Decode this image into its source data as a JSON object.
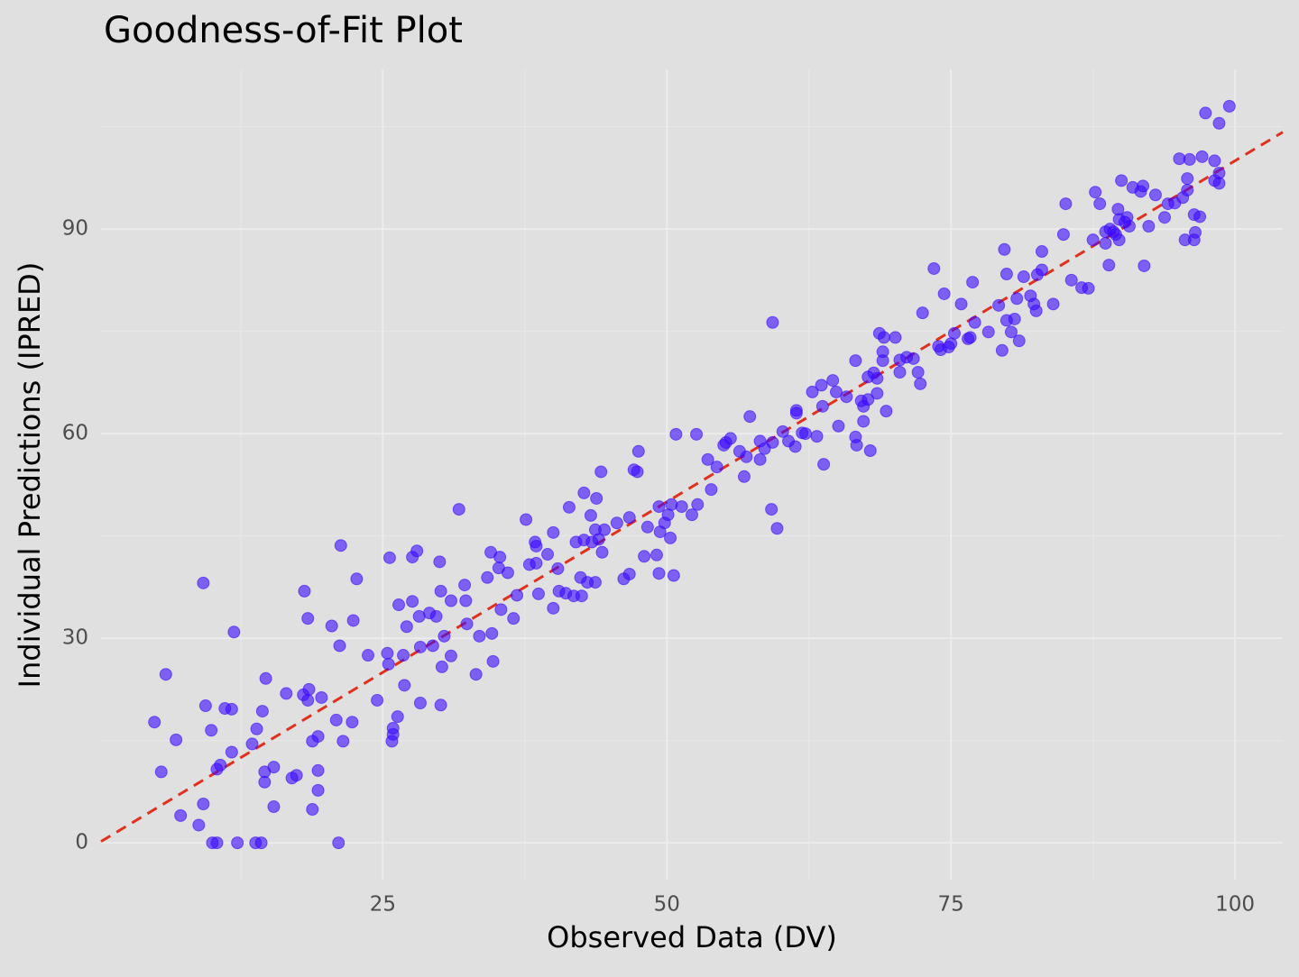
{
  "chart_data": {
    "type": "scatter",
    "title": "Goodness-of-Fit Plot",
    "x_label": "Observed Data (DV)",
    "y_label": "Individual Predictions (IPRED)",
    "xlim": [
      0.2,
      104.2
    ],
    "ylim": [
      -5.4,
      113.4
    ],
    "xticks": [
      25,
      50,
      75,
      100
    ],
    "yticks": [
      0,
      30,
      60,
      90
    ],
    "x_minor_ticks": [
      12.5,
      37.5,
      62.5,
      87.5
    ],
    "y_minor_ticks": [
      15,
      45,
      75,
      105
    ],
    "grid": true,
    "color": "#3a0aff",
    "identity_line": true,
    "identity_color": "#e0301e",
    "x": [
      4.9,
      5.5,
      5.9,
      6.8,
      7.2,
      8.8,
      9.2,
      9.2,
      9.4,
      9.9,
      10.0,
      10.4,
      10.4,
      10.7,
      11.1,
      11.7,
      11.7,
      11.9,
      12.2,
      13.5,
      13.9,
      13.8,
      14.3,
      14.4,
      14.6,
      14.7,
      14.6,
      15.4,
      15.4,
      16.5,
      17.0,
      17.4,
      18.0,
      18.1,
      18.4,
      18.5,
      18.4,
      18.8,
      18.8,
      19.3,
      19.3,
      19.3,
      19.6,
      20.5,
      20.9,
      21.1,
      21.2,
      21.3,
      21.5,
      22.3,
      22.4,
      22.7,
      23.7,
      24.5,
      25.6,
      25.4,
      25.5,
      25.9,
      25.8,
      25.9,
      26.3,
      26.4,
      26.8,
      26.9,
      27.1,
      27.6,
      27.6,
      28.0,
      28.2,
      28.3,
      28.3,
      29.1,
      29.4,
      29.7,
      30.0,
      30.1,
      30.2,
      30.1,
      30.4,
      31.0,
      31.0,
      31.7,
      32.2,
      32.3,
      32.4,
      33.2,
      33.5,
      34.2,
      34.5,
      34.6,
      34.7,
      35.2,
      35.3,
      35.4,
      36.0,
      36.5,
      36.8,
      37.6,
      37.9,
      38.4,
      38.5,
      38.5,
      38.7,
      39.5,
      40.0,
      40.0,
      40.4,
      40.5,
      41.1,
      41.4,
      41.8,
      42.0,
      42.4,
      42.5,
      42.7,
      42.7,
      43.0,
      43.3,
      43.4,
      43.7,
      43.8,
      43.7,
      44.0,
      44.2,
      44.3,
      44.5,
      45.6,
      46.2,
      46.7,
      46.7,
      47.1,
      47.4,
      47.5,
      48.0,
      48.3,
      49.1,
      49.3,
      49.3,
      49.4,
      49.8,
      50.1,
      50.3,
      50.4,
      50.6,
      50.8,
      51.3,
      52.2,
      52.6,
      52.7,
      53.6,
      53.9,
      54.4,
      55.0,
      55.2,
      55.6,
      56.4,
      56.8,
      57.0,
      57.3,
      58.2,
      58.2,
      58.6,
      59.2,
      59.3,
      59.3,
      59.7,
      60.2,
      60.7,
      61.3,
      61.4,
      61.4,
      61.9,
      62.2,
      62.8,
      63.2,
      63.6,
      63.8,
      63.7,
      64.6,
      64.9,
      65.1,
      65.8,
      66.6,
      66.6,
      66.7,
      67.1,
      67.3,
      67.3,
      67.7,
      67.7,
      67.9,
      68.2,
      68.5,
      68.5,
      68.7,
      69.0,
      69.0,
      69.1,
      69.3,
      70.1,
      70.5,
      70.5,
      71.1,
      71.7,
      72.1,
      72.3,
      72.5,
      73.5,
      73.9,
      74.1,
      74.4,
      74.8,
      75.0,
      75.3,
      75.9,
      76.5,
      76.7,
      76.9,
      77.1,
      78.3,
      79.2,
      79.5,
      79.7,
      79.9,
      79.9,
      80.3,
      80.6,
      80.8,
      81.0,
      81.4,
      82.0,
      82.3,
      82.5,
      82.6,
      83.0,
      83.0,
      84.0,
      84.9,
      85.1,
      85.6,
      86.5,
      87.1,
      87.5,
      87.7,
      88.1,
      88.6,
      88.6,
      88.9,
      89.0,
      89.3,
      89.5,
      89.7,
      89.8,
      89.8,
      90.0,
      90.3,
      90.5,
      90.7,
      91.0,
      91.7,
      91.9,
      92.0,
      92.4,
      93.0,
      93.8,
      94.1,
      94.7,
      95.1,
      95.4,
      95.6,
      95.8,
      95.8,
      96.0,
      96.4,
      96.4,
      96.5,
      96.9,
      97.1,
      97.4,
      98.2,
      98.2,
      98.6,
      98.6,
      98.6,
      99.5
    ],
    "values": [
      17.7,
      10.4,
      24.7,
      15.1,
      4.0,
      2.6,
      5.7,
      38.1,
      20.1,
      16.5,
      0,
      0,
      10.8,
      11.4,
      19.7,
      13.3,
      19.6,
      30.9,
      0,
      14.5,
      16.7,
      0,
      0,
      19.3,
      10.4,
      24.1,
      8.9,
      11.1,
      5.3,
      21.9,
      9.5,
      9.9,
      21.7,
      36.9,
      32.9,
      22.5,
      20.9,
      4.9,
      14.9,
      15.6,
      10.6,
      7.7,
      21.3,
      31.8,
      18.0,
      0,
      28.9,
      43.6,
      14.9,
      17.7,
      32.6,
      38.7,
      27.5,
      20.9,
      41.8,
      27.8,
      26.2,
      16.8,
      14.9,
      15.9,
      18.5,
      34.9,
      27.5,
      23.1,
      31.7,
      35.4,
      41.9,
      42.8,
      33.2,
      20.5,
      28.7,
      33.7,
      28.9,
      33.2,
      41.2,
      36.9,
      25.8,
      20.2,
      30.3,
      35.5,
      27.4,
      48.9,
      37.8,
      35.5,
      32.1,
      24.7,
      30.3,
      38.9,
      42.6,
      30.7,
      26.6,
      40.3,
      41.9,
      34.2,
      39.6,
      32.9,
      36.3,
      47.4,
      40.8,
      44.1,
      43.5,
      41.0,
      36.5,
      42.3,
      34.4,
      45.5,
      40.2,
      36.9,
      36.6,
      49.2,
      36.2,
      44.1,
      38.9,
      36.2,
      51.3,
      44.4,
      38.2,
      48.0,
      44.1,
      38.2,
      50.5,
      45.9,
      44.5,
      54.4,
      42.6,
      45.9,
      46.9,
      38.7,
      47.7,
      39.4,
      54.7,
      54.4,
      57.4,
      42.0,
      46.3,
      42.2,
      39.5,
      49.3,
      45.6,
      46.9,
      48.1,
      44.7,
      49.6,
      39.2,
      59.9,
      49.3,
      48.1,
      59.9,
      49.6,
      56.2,
      51.8,
      55.1,
      58.3,
      58.7,
      59.3,
      57.4,
      53.7,
      56.6,
      62.5,
      56.2,
      58.9,
      57.8,
      48.9,
      76.3,
      58.7,
      46.1,
      60.3,
      58.9,
      58.1,
      63.0,
      63.4,
      60.1,
      60.0,
      66.1,
      59.6,
      67.1,
      55.5,
      64.0,
      67.8,
      66.1,
      61.1,
      65.4,
      70.7,
      59.5,
      58.3,
      64.8,
      64.0,
      61.8,
      68.3,
      65.0,
      57.5,
      68.9,
      65.9,
      68.1,
      74.7,
      72.0,
      70.7,
      74.1,
      63.3,
      74.1,
      70.8,
      69.0,
      71.2,
      71.0,
      69.0,
      67.3,
      77.7,
      84.2,
      72.8,
      72.3,
      80.5,
      72.7,
      73.2,
      74.7,
      79.0,
      73.9,
      74.1,
      82.2,
      76.3,
      74.9,
      78.8,
      72.2,
      87.0,
      76.6,
      83.4,
      74.9,
      76.8,
      79.8,
      73.6,
      83.0,
      80.2,
      79.0,
      78.0,
      83.3,
      84.0,
      86.7,
      79.0,
      89.2,
      93.7,
      82.5,
      81.4,
      81.3,
      88.4,
      95.4,
      93.7,
      89.6,
      87.9,
      84.7,
      90.0,
      89.6,
      89.2,
      92.9,
      88.4,
      91.4,
      97.1,
      91.0,
      91.7,
      90.4,
      96.1,
      95.5,
      96.3,
      84.6,
      90.4,
      95.0,
      91.7,
      93.7,
      93.8,
      100.3,
      94.6,
      88.4,
      97.4,
      95.7,
      100.2,
      92.1,
      88.4,
      89.5,
      91.8,
      100.6,
      107.0,
      100.0,
      97.1,
      96.7,
      98.2,
      105.5,
      108.0
    ]
  }
}
